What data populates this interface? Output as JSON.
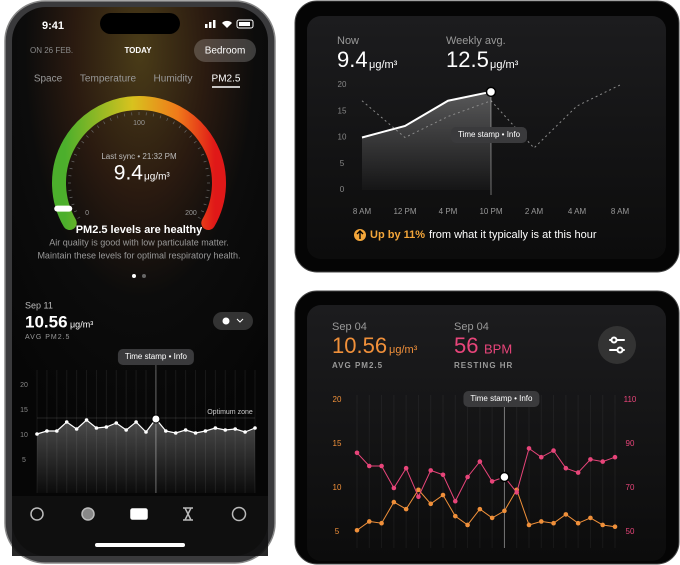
{
  "phone": {
    "status_time": "9:41",
    "date_prev": "ON 26 FEB.",
    "date_current": "TODAY",
    "room_button": "Bedroom",
    "tabs": [
      "Space",
      "Temperature",
      "Humidity",
      "PM2.5"
    ],
    "gauge": {
      "range": [
        0,
        200
      ],
      "ticks": [
        0,
        100,
        200
      ],
      "sync": "Last sync • 21:32 PM",
      "value": 9.4,
      "unit": "μg/m³"
    },
    "status_title": "PM2.5 levels are healthy",
    "status_text": [
      "Air quality is good with low particulate matter.",
      "Maintain these levels for optimal respiratory health."
    ],
    "chart_data": {
      "type": "line",
      "date": "Sep 11",
      "value": 10.56,
      "unit": "μg/m³",
      "series": [
        {
          "name": "AVG PM2.5",
          "color": "#ffffff",
          "values": [
            10.2,
            10.8,
            10.8,
            12.6,
            11.2,
            13.0,
            11.4,
            11.6,
            12.4,
            11.0,
            12.6,
            10.6,
            13.2,
            10.8,
            10.4,
            11.0,
            10.4,
            10.8,
            11.4,
            11.0,
            11.2,
            10.6,
            11.4
          ]
        }
      ],
      "tooltip": "Time stamp • Info",
      "annotation": "Optimum zone",
      "ylim": [
        0,
        20
      ],
      "yticks": [
        5,
        10,
        15,
        20
      ]
    }
  },
  "top_card": {
    "chart_data": {
      "type": "line",
      "now_value": 9.4,
      "now_unit": "μg/m³",
      "avg_value": 12.5,
      "avg_unit": "μg/m³",
      "categories": [
        "8 AM",
        "12 PM",
        "4 PM",
        "10 PM",
        "2 AM",
        "4 AM",
        "8 AM"
      ],
      "ylim": [
        0,
        20
      ],
      "yticks": [
        0,
        5,
        10,
        15,
        20
      ],
      "series": [
        {
          "name": "Now",
          "color": "#ffffff",
          "values": [
            10,
            12.2,
            17,
            18.7,
            null,
            null,
            null
          ]
        },
        {
          "name": "Weekly avg.",
          "color": "#8a8a8a",
          "dashed": true,
          "values": [
            17,
            10,
            14,
            17,
            8,
            16,
            20
          ]
        }
      ],
      "tooltip": "Time stamp • Info",
      "highlight": "Up by 11%",
      "footer": "from  what it typically is at this hour"
    }
  },
  "bottom_card": {
    "chart_data": {
      "type": "line",
      "metrics": [
        {
          "date": "Sep 04",
          "value": 10.56,
          "unit": "μg/m³"
        },
        {
          "date": "Sep 04",
          "value": 56,
          "unit": "BPM"
        }
      ],
      "ylim": [
        3,
        20
      ],
      "yticks": [
        5,
        10,
        15,
        20
      ],
      "y2lim": [
        42,
        110
      ],
      "y2ticks": [
        50,
        70,
        90,
        110
      ],
      "series": [
        {
          "name": "AVG PM2.5",
          "color": "#f0903a",
          "values": [
            5.2,
            6.2,
            6.0,
            8.4,
            7.6,
            9.8,
            8.2,
            9.2,
            6.8,
            5.8,
            7.6,
            6.6,
            7.4,
            9.8,
            5.8,
            6.2,
            6.0,
            7.0,
            6.0,
            6.6,
            5.8,
            5.6
          ]
        },
        {
          "name": "RESTING HR",
          "color": "#e8457a",
          "axis": "y2",
          "values": [
            86,
            80,
            80,
            70,
            79,
            66,
            78,
            76,
            64,
            75,
            82,
            73,
            75,
            68,
            88,
            84,
            87,
            79,
            77,
            83,
            82,
            84
          ]
        }
      ],
      "tooltip": "Time stamp • Info"
    }
  }
}
